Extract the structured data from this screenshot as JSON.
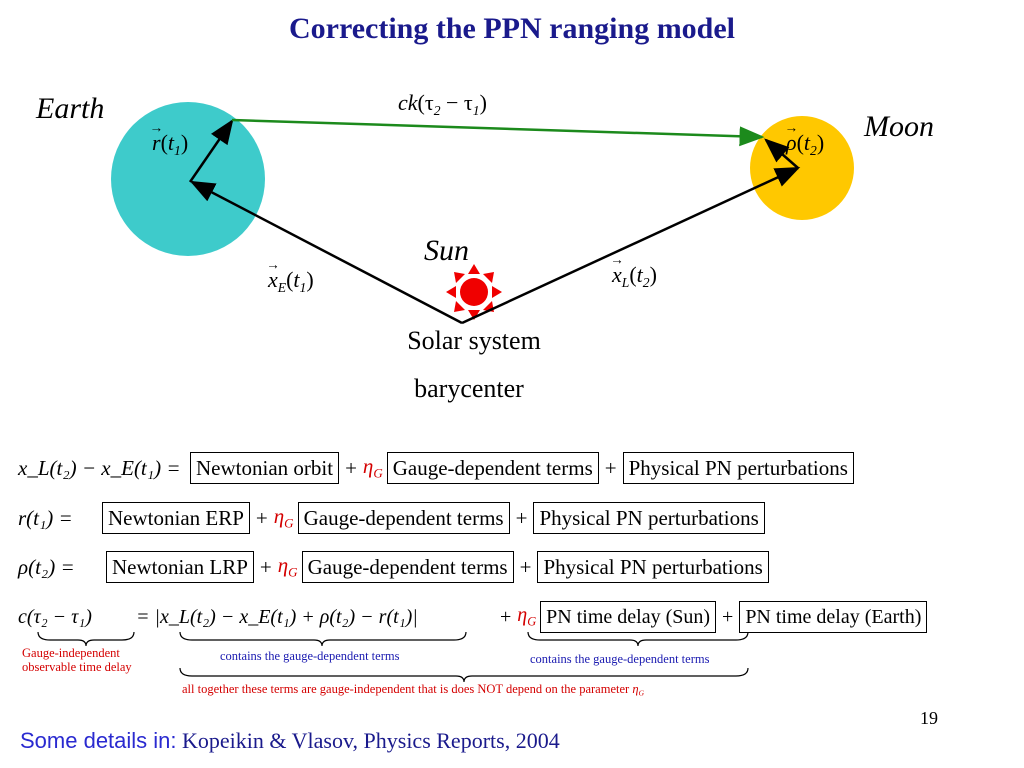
{
  "title": "Correcting the PPN ranging model",
  "labels": {
    "earth": "Earth",
    "moon": "Moon",
    "sun": "Sun",
    "caption_line1": "Solar system",
    "caption_line2": "barycenter"
  },
  "vectors": {
    "ck": "ck",
    "tau_expr_open": "(τ",
    "tau_sub2": "2",
    "tau_minus": " − τ",
    "tau_sub1": "1",
    "tau_close": ")",
    "r_t1": "r",
    "rho_t2": "ρ",
    "xE": "x",
    "xE_sub": "E",
    "xL": "x",
    "xL_sub": "L"
  },
  "colors": {
    "earth": "#3ecbcb",
    "moon": "#ffc800",
    "sun": "#f00000",
    "arrow_green": "#1c8a1c",
    "title": "#1a1a8c"
  },
  "equations": [
    {
      "lhs": "x_L(t₂) − x_E(t₁) =",
      "box1": "Newtonian orbit",
      "box2": "Gauge-dependent terms",
      "box3": "Physical PN perturbations"
    },
    {
      "lhs": "r(t₁)  =",
      "box1": "Newtonian ERP",
      "box2": "Gauge-dependent terms",
      "box3": "Physical PN perturbations"
    },
    {
      "lhs": "ρ(t₂)  =",
      "box1": "Newtonian LRP",
      "box2": "Gauge-dependent terms",
      "box3": "Physical PN perturbations"
    }
  ],
  "delay_eq": {
    "lhs": "c(τ₂ − τ₁)",
    "mid": "= |x_L(t₂) − x_E(t₁) + ρ(t₂) − r(t₁)|",
    "box1": "PN time delay (Sun)",
    "box2": "PN time delay (Earth)"
  },
  "notes": {
    "gauge_independent_line1": "Gauge-independent",
    "gauge_independent_line2": "observable time delay",
    "contains_gauge_1": "contains the gauge-dependent terms",
    "contains_gauge_2": "contains the gauge-dependent terms",
    "all_together": "all together these terms are gauge-independent that is does NOT depend on the parameter"
  },
  "footer": {
    "label": "Some details in:",
    "reference": "Kopeikin & Vlasov, Physics Reports, 2004"
  },
  "page_number": "19"
}
